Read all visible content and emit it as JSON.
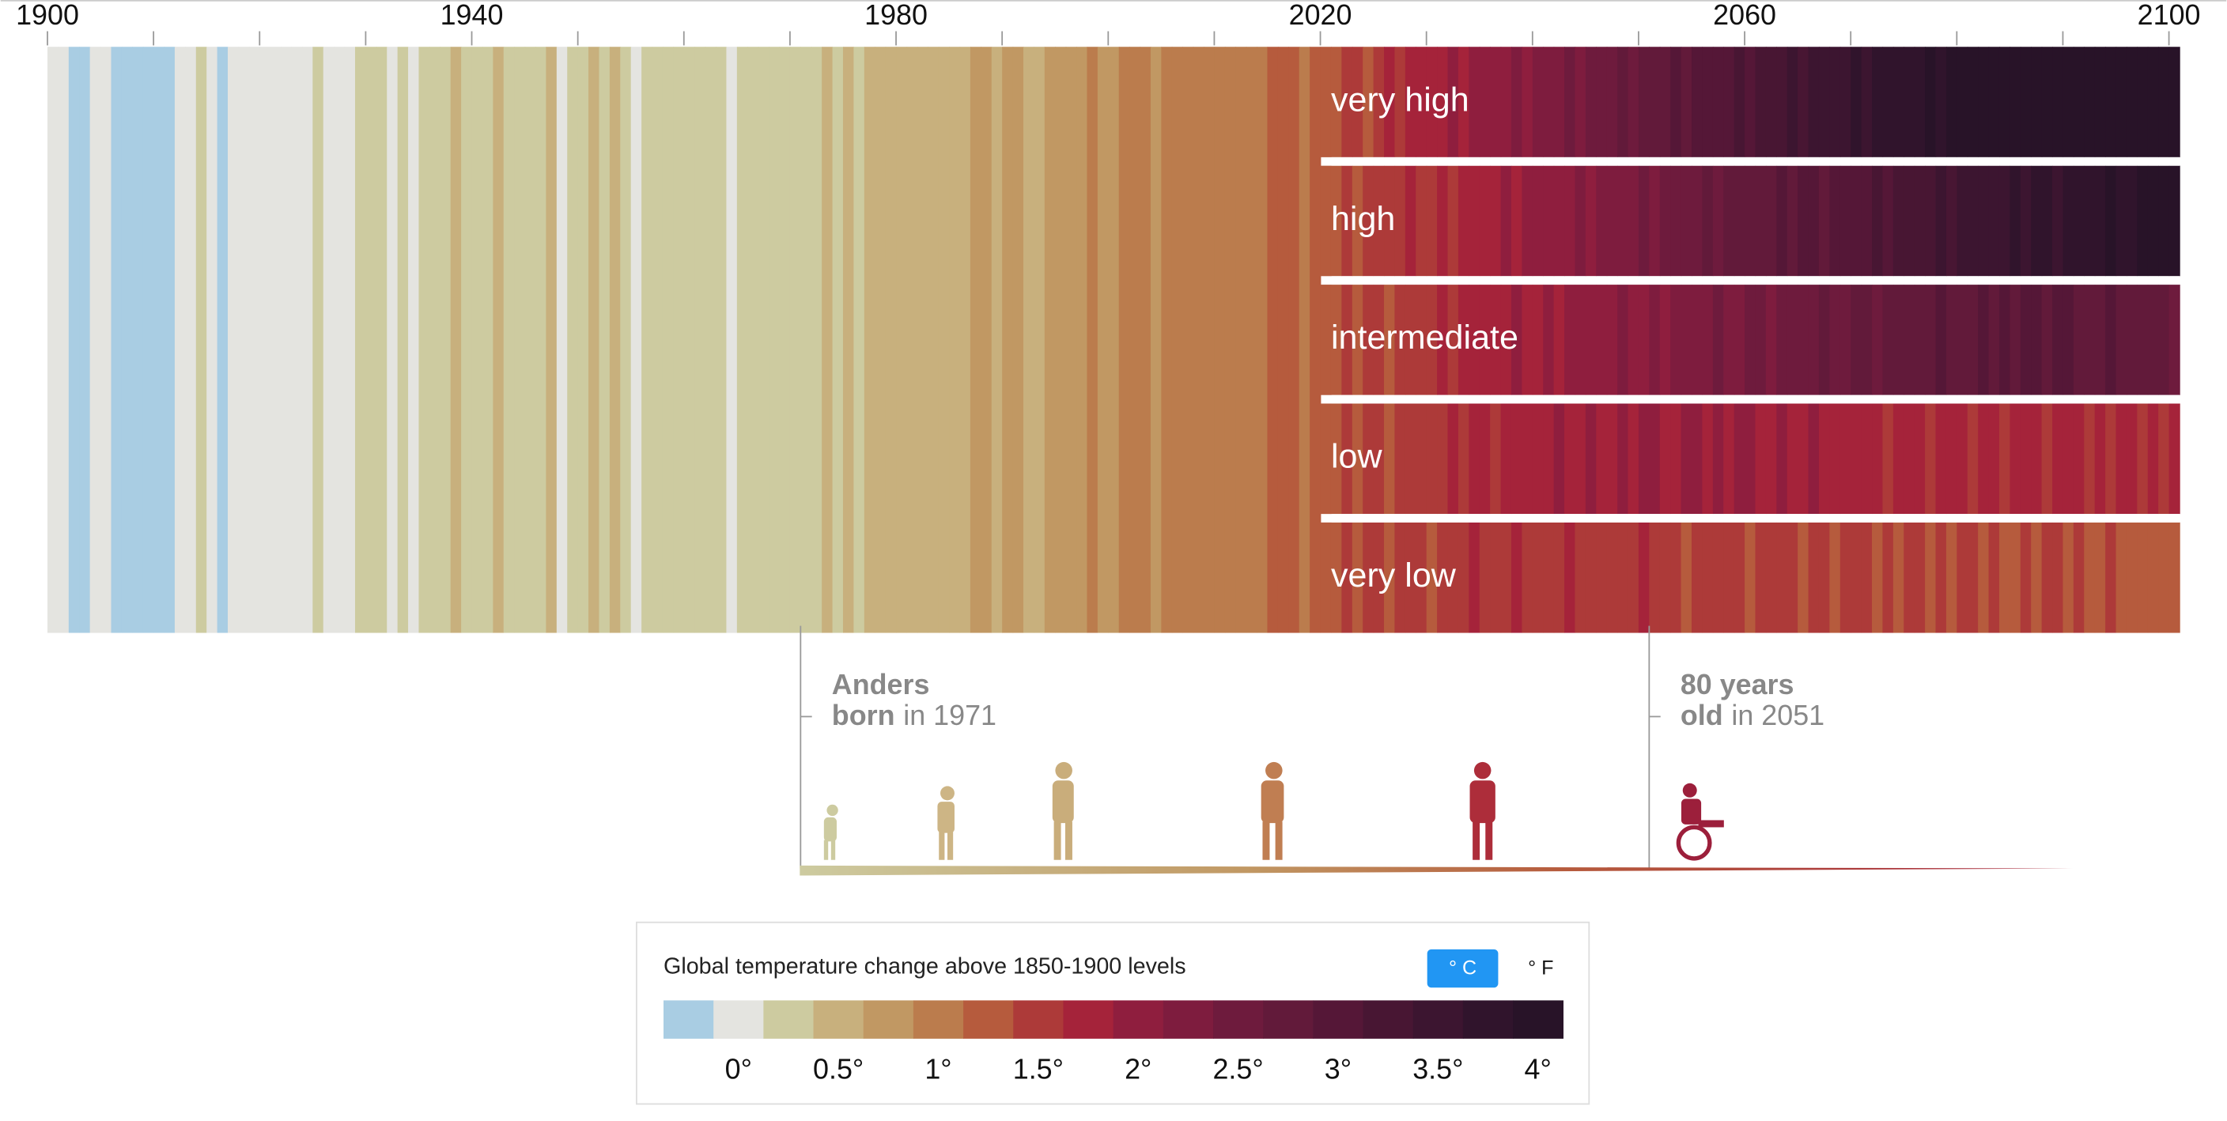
{
  "chart_data": {
    "type": "stripes",
    "xlim": [
      1900,
      2101
    ],
    "xticks": [
      1900,
      1940,
      1980,
      2020,
      2060,
      2100
    ],
    "xticks_minor": [
      1910,
      1920,
      1930,
      1950,
      1960,
      1970,
      1990,
      2000,
      2010,
      2030,
      2040,
      2050,
      2070,
      2080,
      2090
    ],
    "history": {
      "start": 1900,
      "values": [
        0,
        0,
        -0.25,
        -0.25,
        0,
        0,
        -0.25,
        -0.25,
        -0.25,
        -0.25,
        -0.25,
        -0.25,
        0,
        0,
        0.25,
        0,
        -0.25,
        0,
        0,
        0,
        0,
        0,
        0,
        0,
        0,
        0.25,
        0,
        0,
        0,
        0.25,
        0.25,
        0.25,
        0,
        0.25,
        0,
        0.25,
        0.25,
        0.25,
        0.5,
        0.25,
        0.25,
        0.25,
        0.5,
        0.25,
        0.25,
        0.25,
        0.25,
        0.5,
        0,
        0.25,
        0.25,
        0.5,
        0.25,
        0.5,
        0.25,
        0,
        0.25,
        0.25,
        0.25,
        0.25,
        0.25,
        0.25,
        0.25,
        0.25,
        0,
        0.25,
        0.25,
        0.25,
        0.25,
        0.25,
        0.25,
        0.25,
        0.25,
        0.5,
        0.25,
        0.5,
        0.25,
        0.5,
        0.5,
        0.5,
        0.5,
        0.5,
        0.5,
        0.5,
        0.5,
        0.5,
        0.5,
        0.75,
        0.75,
        0.5,
        0.75,
        0.75,
        0.5,
        0.5,
        0.75,
        0.75,
        0.75,
        0.75,
        1.0,
        0.75,
        0.75,
        1.0,
        1.0,
        1.0,
        0.75,
        1.0,
        1.0,
        1.0,
        1.0,
        1.0,
        1.0,
        1.0,
        1.0,
        1.0,
        1.0,
        1.25,
        1.25,
        1.25,
        1.0,
        1.25,
        1.25
      ]
    },
    "scenarios": [
      {
        "name": "very high",
        "start": 2021,
        "values": [
          1.25,
          1.5,
          1.5,
          1.25,
          1.5,
          1.75,
          1.5,
          1.75,
          1.75,
          1.75,
          1.75,
          2,
          1.75,
          2,
          2,
          2,
          2,
          2.25,
          2,
          2.25,
          2.25,
          2.25,
          2.5,
          2.25,
          2.5,
          2.5,
          2.5,
          2.75,
          2.5,
          2.75,
          2.75,
          2.75,
          3,
          2.75,
          3,
          3,
          3,
          3,
          3.25,
          3,
          3.25,
          3.25,
          3.25,
          3.5,
          3.25,
          3.5,
          3.5,
          3.5,
          3.5,
          3.75,
          3.5,
          3.75,
          3.75,
          3.75,
          3.75,
          3.75,
          4,
          3.75,
          4,
          4,
          4,
          4,
          4,
          4,
          4,
          4,
          4,
          4,
          4,
          4,
          4,
          4,
          4,
          4,
          4,
          4,
          4,
          4,
          4,
          4
        ]
      },
      {
        "name": "high",
        "start": 2021,
        "values": [
          1.25,
          1.5,
          1.25,
          1.5,
          1.5,
          1.5,
          1.5,
          1.75,
          1.5,
          1.5,
          1.75,
          1.5,
          1.75,
          1.75,
          1.75,
          1.75,
          2,
          1.75,
          2,
          2,
          2,
          2,
          2,
          2.25,
          2,
          2.25,
          2.25,
          2.25,
          2.25,
          2.5,
          2.25,
          2.5,
          2.5,
          2.5,
          2.5,
          2.75,
          2.5,
          2.75,
          2.75,
          2.75,
          2.75,
          2.75,
          3,
          2.75,
          3,
          3,
          2.75,
          3,
          3,
          3,
          3,
          3.25,
          3,
          3.25,
          3.25,
          3.25,
          3.25,
          3.5,
          3.25,
          3.5,
          3.5,
          3.5,
          3.5,
          3.5,
          3.75,
          3.5,
          3.75,
          3.75,
          3.5,
          3.75,
          3.75,
          3.75,
          3.75,
          4,
          3.75,
          3.75,
          4,
          4,
          4,
          4
        ]
      },
      {
        "name": "intermediate",
        "start": 2021,
        "values": [
          1.25,
          1.5,
          1.25,
          1.5,
          1.5,
          1.25,
          1.5,
          1.5,
          1.5,
          1.5,
          1.75,
          1.5,
          1.75,
          1.75,
          1.75,
          1.75,
          1.75,
          2,
          1.75,
          1.75,
          2,
          1.75,
          2,
          2,
          2,
          2,
          2,
          2.25,
          2,
          2,
          2.25,
          2,
          2.25,
          2.25,
          2.25,
          2.25,
          2.5,
          2.25,
          2.25,
          2.5,
          2.5,
          2.25,
          2.5,
          2.5,
          2.5,
          2.5,
          2.75,
          2.5,
          2.5,
          2.75,
          2.75,
          2.5,
          2.75,
          2.75,
          2.75,
          2.75,
          2.75,
          3,
          2.75,
          2.75,
          2.75,
          3,
          2.75,
          3,
          2.75,
          3,
          3,
          2.75,
          3,
          3,
          2.75,
          2.75,
          2.75,
          3,
          2.75,
          2.75,
          2.75,
          2.75,
          2.75,
          2.5
        ]
      },
      {
        "name": "low",
        "start": 2021,
        "values": [
          1.25,
          1.5,
          1.25,
          1.5,
          1.5,
          1.25,
          1.5,
          1.5,
          1.5,
          1.5,
          1.5,
          1.75,
          1.5,
          1.75,
          1.75,
          1.5,
          1.75,
          1.75,
          1.75,
          1.75,
          1.75,
          2,
          1.75,
          1.75,
          2,
          1.75,
          1.75,
          2,
          1.75,
          2,
          2,
          1.75,
          1.75,
          2,
          2,
          1.75,
          2,
          1.75,
          2,
          2,
          1.75,
          1.75,
          2,
          1.75,
          1.75,
          2,
          1.75,
          1.75,
          1.75,
          1.75,
          1.75,
          1.75,
          1.5,
          1.75,
          1.75,
          1.75,
          1.5,
          1.75,
          1.75,
          1.75,
          1.5,
          1.75,
          1.75,
          1.5,
          1.75,
          1.75,
          1.75,
          1.5,
          1.75,
          1.75,
          1.75,
          1.5,
          1.75,
          1.5,
          1.75,
          1.75,
          1.5,
          1.75,
          1.5,
          1.75
        ]
      },
      {
        "name": "very low",
        "start": 2021,
        "values": [
          1.25,
          1.5,
          1.25,
          1.5,
          1.5,
          1.25,
          1.5,
          1.5,
          1.5,
          1.25,
          1.5,
          1.5,
          1.5,
          1.75,
          1.5,
          1.5,
          1.5,
          1.75,
          1.5,
          1.5,
          1.5,
          1.5,
          1.75,
          1.5,
          1.5,
          1.5,
          1.5,
          1.5,
          1.5,
          1.75,
          1.5,
          1.5,
          1.5,
          1.25,
          1.5,
          1.5,
          1.5,
          1.5,
          1.5,
          1.25,
          1.5,
          1.5,
          1.5,
          1.5,
          1.25,
          1.5,
          1.5,
          1.25,
          1.5,
          1.5,
          1.5,
          1.25,
          1.5,
          1.25,
          1.5,
          1.5,
          1.25,
          1.5,
          1.25,
          1.5,
          1.5,
          1.25,
          1.5,
          1.25,
          1.25,
          1.5,
          1.25,
          1.5,
          1.5,
          1.25,
          1.5,
          1.25,
          1.25,
          1.5,
          1.25,
          1.25,
          1.25,
          1.25,
          1.25,
          1.25
        ]
      }
    ],
    "annotations": [
      {
        "year": 1971,
        "line1": "Anders",
        "line2_bold": "born",
        "line2": "in 1971"
      },
      {
        "year": 2051,
        "line1": "80 years",
        "line2_bold": "old",
        "line2": "in 2051"
      }
    ],
    "legend": {
      "title": "Global temperature change above 1850-1900 levels",
      "units": [
        "° C",
        "° F"
      ],
      "active_unit": 0,
      "bins": [
        -0.25,
        0,
        0.25,
        0.5,
        0.75,
        1,
        1.25,
        1.5,
        1.75,
        2,
        2.25,
        2.5,
        2.75,
        3,
        3.25,
        3.5,
        3.75,
        4
      ],
      "colors": [
        "#a9cde3",
        "#e4e4e0",
        "#cdcba0",
        "#c8b07d",
        "#c19863",
        "#bb7c4d",
        "#b65b3d",
        "#ad3a39",
        "#a5233a",
        "#8f1e3e",
        "#7e1c3e",
        "#6e1b3d",
        "#621a3a",
        "#551737",
        "#481633",
        "#3c1530",
        "#30142c",
        "#281328"
      ],
      "ticks": [
        {
          "value": 0,
          "label": "0°"
        },
        {
          "value": 0.5,
          "label": "0.5°"
        },
        {
          "value": 1,
          "label": "1°"
        },
        {
          "value": 1.5,
          "label": "1.5°"
        },
        {
          "value": 2,
          "label": "2°"
        },
        {
          "value": 2.5,
          "label": "2.5°"
        },
        {
          "value": 3,
          "label": "3°"
        },
        {
          "value": 3.5,
          "label": "3.5°"
        },
        {
          "value": 4,
          "label": "4°"
        }
      ]
    }
  }
}
